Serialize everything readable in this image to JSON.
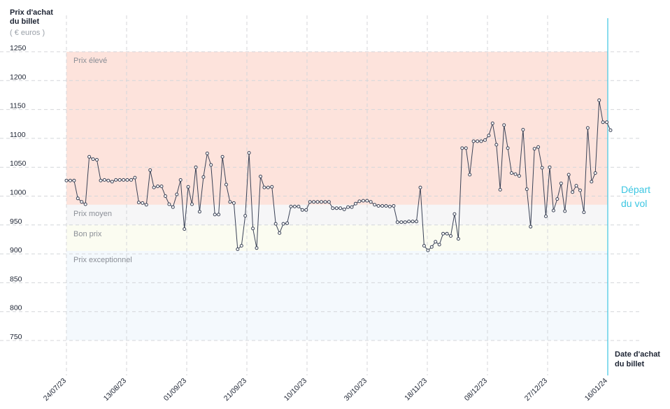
{
  "chart_data": {
    "type": "line",
    "ylabel_lines": [
      "Prix d'achat",
      "du billet"
    ],
    "yunit": "( € euros )",
    "xlabel_lines": [
      "Date d'achat",
      "du billet"
    ],
    "departure_label_lines": [
      "Départ",
      "du vol"
    ],
    "ylim": [
      700,
      1250
    ],
    "yticks": [
      750,
      800,
      850,
      900,
      950,
      1000,
      1050,
      1100,
      1150,
      1200,
      1250
    ],
    "xticks": [
      "24/07/23",
      "13/08/23",
      "01/09/23",
      "21/09/23",
      "10/10/23",
      "30/10/23",
      "18/11/23",
      "08/12/23",
      "27/12/23",
      "16/01/24"
    ],
    "bands": [
      {
        "name": "Prix élevé",
        "from": 985,
        "to": 1250,
        "color": "#fde3dc"
      },
      {
        "name": "Prix moyen",
        "from": 950,
        "to": 985,
        "color": "#f6f6f7"
      },
      {
        "name": "Bon prix",
        "from": 905,
        "to": 950,
        "color": "#fbfcf1"
      },
      {
        "name": "Prix exceptionnel",
        "from": 750,
        "to": 905,
        "color": "#f4f9fd"
      }
    ],
    "series": [
      {
        "color": "#3a4256",
        "values": [
          1027,
          1027,
          1027,
          996,
          990,
          986,
          1068,
          1064,
          1063,
          1027,
          1028,
          1027,
          1025,
          1028,
          1028,
          1028,
          1028,
          1028,
          1032,
          989,
          988,
          985,
          1045,
          1015,
          1017,
          1017,
          1000,
          986,
          981,
          1003,
          1028,
          943,
          1016,
          986,
          1050,
          973,
          1033,
          1074,
          1054,
          968,
          968,
          1068,
          1020,
          990,
          988,
          908,
          914,
          966,
          1075,
          944,
          910,
          1034,
          1015,
          1015,
          1016,
          952,
          936,
          952,
          953,
          982,
          982,
          982,
          976,
          976,
          990,
          990,
          990,
          990,
          990,
          990,
          979,
          979,
          979,
          977,
          981,
          981,
          987,
          991,
          992,
          992,
          990,
          985,
          983,
          983,
          983,
          982,
          983,
          955,
          955,
          955,
          956,
          956,
          956,
          1015,
          914,
          906,
          912,
          921,
          916,
          935,
          935,
          931,
          969,
          926,
          1083,
          1083,
          1037,
          1095,
          1095,
          1095,
          1097,
          1105,
          1126,
          1089,
          1011,
          1123,
          1083,
          1040,
          1038,
          1035,
          1115,
          1012,
          947,
          1082,
          1085,
          1049,
          965,
          1050,
          975,
          995,
          1022,
          974,
          1037,
          1007,
          1018,
          1010,
          972,
          1118,
          1025,
          1040,
          1166,
          1128,
          1128,
          1114
        ]
      }
    ]
  }
}
